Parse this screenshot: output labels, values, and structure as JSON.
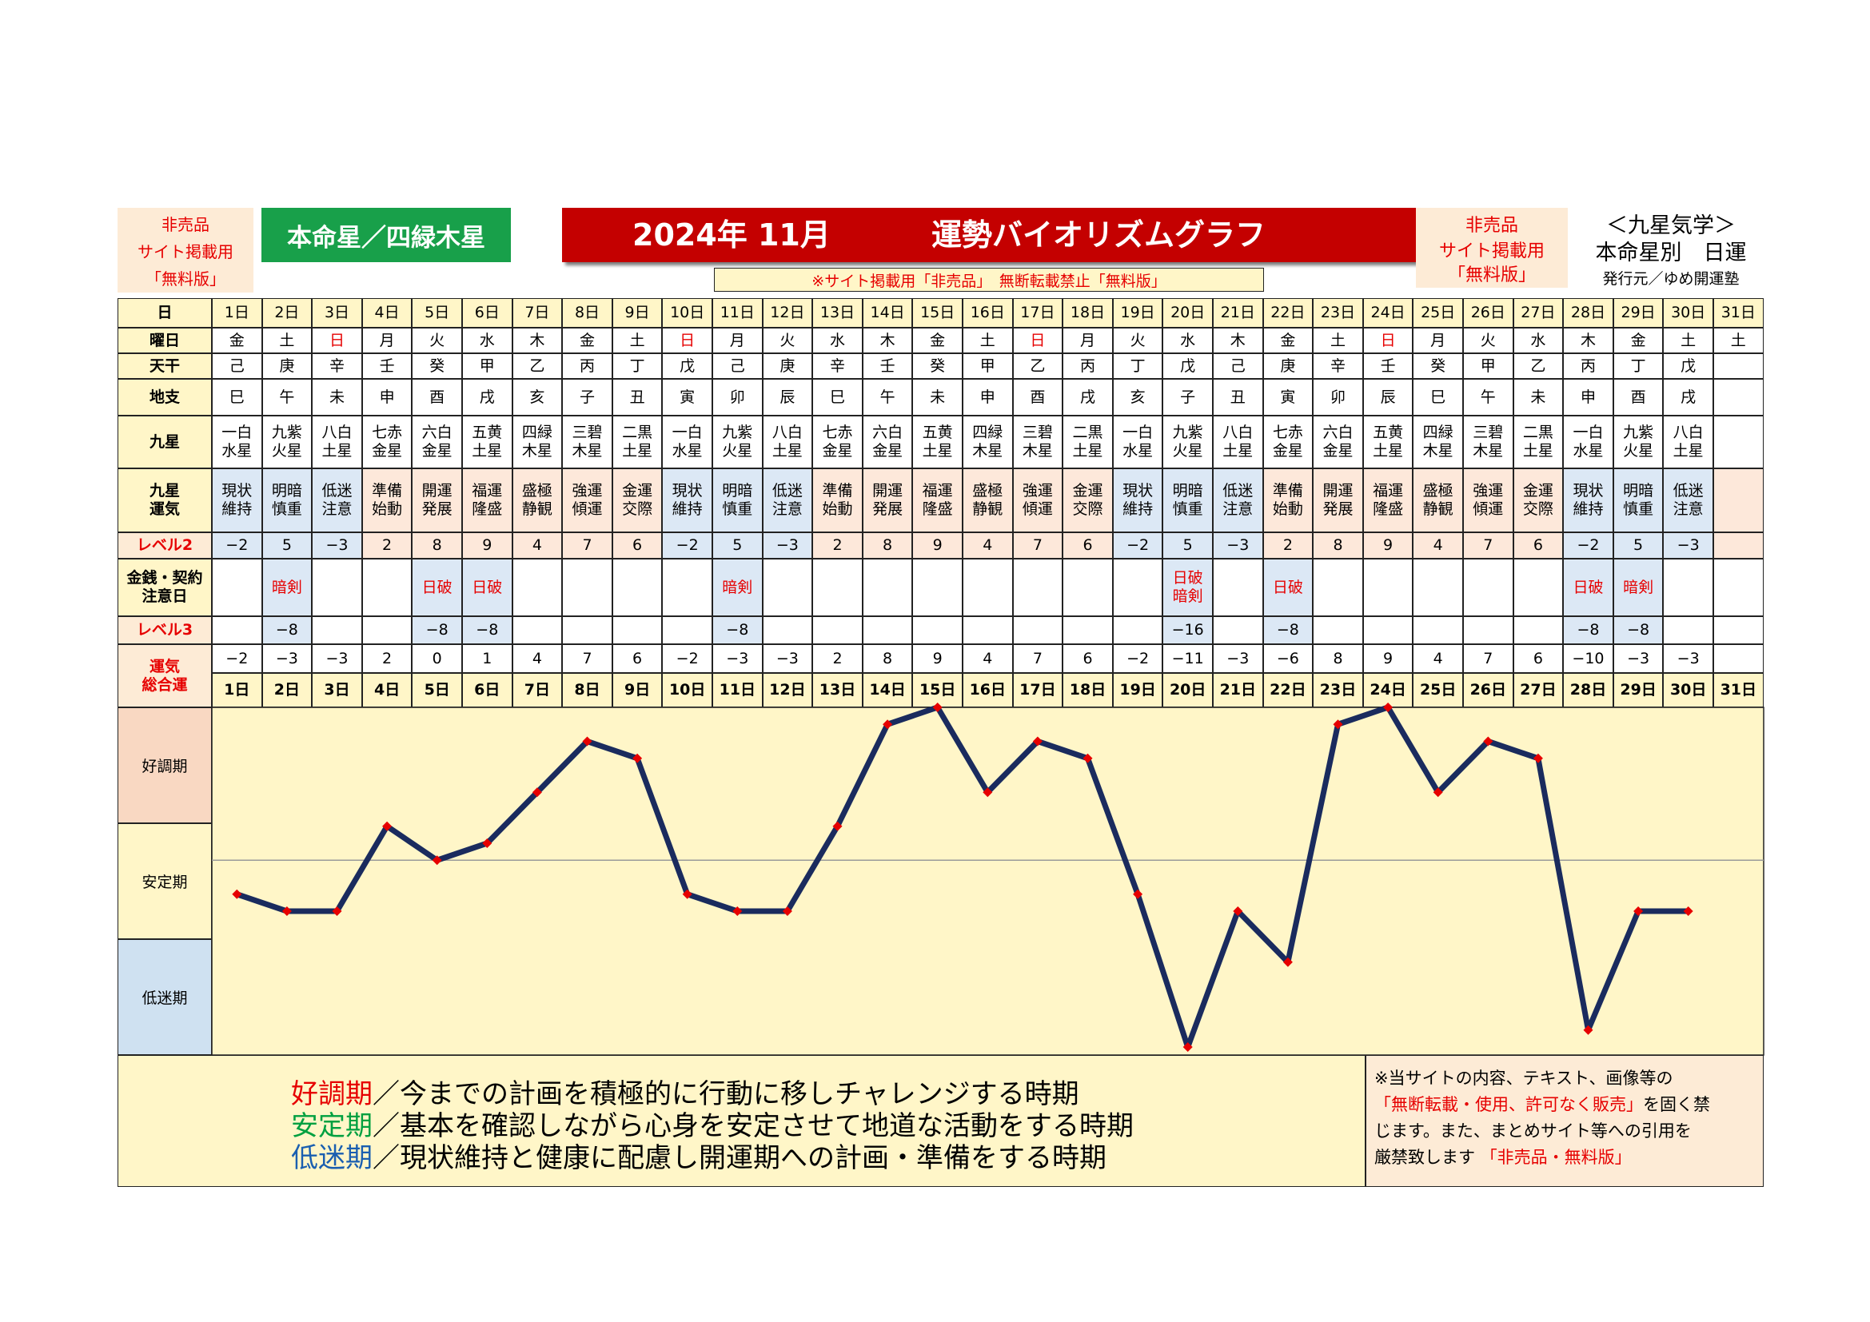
{
  "header": {
    "left_notice": [
      "非売品",
      "サイト掲載用",
      "「無料版」"
    ],
    "honmei_label": "本命星／四緑木星",
    "title_year_month": "2024年 11月",
    "title_main": "運勢バイオリズムグラフ",
    "right_notice": [
      "非売品",
      "サイト掲載用",
      "「無料版」"
    ],
    "school": "＜九星気学＞",
    "school_sub": "本命星別　日運",
    "publisher": "発行元／ゆめ開運塾",
    "banner": "※サイト掲載用「非売品」　無断転載禁止「無料版」"
  },
  "table": {
    "row_labels": {
      "day": "日",
      "weekday": "曜日",
      "tenkan": "天干",
      "chishi": "地支",
      "kyusei": "九星",
      "unki": "九星\n運気",
      "level2": "レベル2",
      "caution": "金銭・契約\n注意日",
      "level3": "レベル3",
      "total": "運気\n総合運"
    },
    "days": [
      "1日",
      "2日",
      "3日",
      "4日",
      "5日",
      "6日",
      "7日",
      "8日",
      "9日",
      "10日",
      "11日",
      "12日",
      "13日",
      "14日",
      "15日",
      "16日",
      "17日",
      "18日",
      "19日",
      "20日",
      "21日",
      "22日",
      "23日",
      "24日",
      "25日",
      "26日",
      "27日",
      "28日",
      "29日",
      "30日",
      "31日"
    ],
    "weekdays": [
      "金",
      "土",
      "日",
      "月",
      "火",
      "水",
      "木",
      "金",
      "土",
      "日",
      "月",
      "火",
      "水",
      "木",
      "金",
      "土",
      "日",
      "月",
      "火",
      "水",
      "木",
      "金",
      "土",
      "日",
      "月",
      "火",
      "水",
      "木",
      "金",
      "土",
      "土"
    ],
    "tenkan": [
      "己",
      "庚",
      "辛",
      "壬",
      "癸",
      "甲",
      "乙",
      "丙",
      "丁",
      "戊",
      "己",
      "庚",
      "辛",
      "壬",
      "癸",
      "甲",
      "乙",
      "丙",
      "丁",
      "戊",
      "己",
      "庚",
      "辛",
      "壬",
      "癸",
      "甲",
      "乙",
      "丙",
      "丁",
      "戊",
      ""
    ],
    "chishi": [
      "巳",
      "午",
      "未",
      "申",
      "酉",
      "戌",
      "亥",
      "子",
      "丑",
      "寅",
      "卯",
      "辰",
      "巳",
      "午",
      "未",
      "申",
      "酉",
      "戌",
      "亥",
      "子",
      "丑",
      "寅",
      "卯",
      "辰",
      "巳",
      "午",
      "未",
      "申",
      "酉",
      "戌",
      ""
    ],
    "kyusei": [
      "一白\n水星",
      "九紫\n火星",
      "八白\n土星",
      "七赤\n金星",
      "六白\n金星",
      "五黄\n土星",
      "四緑\n木星",
      "三碧\n木星",
      "二黒\n土星",
      "一白\n水星",
      "九紫\n火星",
      "八白\n土星",
      "七赤\n金星",
      "六白\n金星",
      "五黄\n土星",
      "四緑\n木星",
      "三碧\n木星",
      "二黒\n土星",
      "一白\n水星",
      "九紫\n火星",
      "八白\n土星",
      "七赤\n金星",
      "六白\n金星",
      "五黄\n土星",
      "四緑\n木星",
      "三碧\n木星",
      "二黒\n土星",
      "一白\n水星",
      "九紫\n火星",
      "八白\n土星",
      ""
    ],
    "unki": [
      "現状\n維持",
      "明暗\n慎重",
      "低迷\n注意",
      "準備\n始動",
      "開運\n発展",
      "福運\n隆盛",
      "盛極\n静観",
      "強運\n傾運",
      "金運\n交際",
      "現状\n維持",
      "明暗\n慎重",
      "低迷\n注意",
      "準備\n始動",
      "開運\n発展",
      "福運\n隆盛",
      "盛極\n静観",
      "強運\n傾運",
      "金運\n交際",
      "現状\n維持",
      "明暗\n慎重",
      "低迷\n注意",
      "準備\n始動",
      "開運\n発展",
      "福運\n隆盛",
      "盛極\n静観",
      "強運\n傾運",
      "金運\n交際",
      "現状\n維持",
      "明暗\n慎重",
      "低迷\n注意",
      ""
    ],
    "level2": [
      "−2",
      "5",
      "−3",
      "2",
      "8",
      "9",
      "4",
      "7",
      "6",
      "−2",
      "5",
      "−3",
      "2",
      "8",
      "9",
      "4",
      "7",
      "6",
      "−2",
      "5",
      "−3",
      "2",
      "8",
      "9",
      "4",
      "7",
      "6",
      "−2",
      "5",
      "−3",
      ""
    ],
    "caution": [
      "",
      "暗剣",
      "",
      "",
      "日破",
      "日破",
      "",
      "",
      "",
      "",
      "暗剣",
      "",
      "",
      "",
      "",
      "",
      "",
      "",
      "",
      "日破\n暗剣",
      "",
      "日破",
      "",
      "",
      "",
      "",
      "",
      "日破",
      "暗剣",
      "",
      ""
    ],
    "level3": [
      "",
      "−8",
      "",
      "",
      "−8",
      "−8",
      "",
      "",
      "",
      "",
      "−8",
      "",
      "",
      "",
      "",
      "",
      "",
      "",
      "",
      "−16",
      "",
      "−8",
      "",
      "",
      "",
      "",
      "",
      "−8",
      "−8",
      "",
      ""
    ],
    "total": [
      "−2",
      "−3",
      "−3",
      "2",
      "0",
      "1",
      "4",
      "7",
      "6",
      "−2",
      "−3",
      "−3",
      "2",
      "8",
      "9",
      "4",
      "7",
      "6",
      "−2",
      "−11",
      "−3",
      "−6",
      "8",
      "9",
      "4",
      "7",
      "6",
      "−10",
      "−3",
      "−3",
      ""
    ]
  },
  "chart_data": {
    "type": "line",
    "x": [
      "1日",
      "2日",
      "3日",
      "4日",
      "5日",
      "6日",
      "7日",
      "8日",
      "9日",
      "10日",
      "11日",
      "12日",
      "13日",
      "14日",
      "15日",
      "16日",
      "17日",
      "18日",
      "19日",
      "20日",
      "21日",
      "22日",
      "23日",
      "24日",
      "25日",
      "26日",
      "27日",
      "28日",
      "29日",
      "30日",
      "31日"
    ],
    "series": [
      {
        "values": [
          -2,
          -3,
          -3,
          2,
          0,
          1,
          4,
          7,
          6,
          -2,
          -3,
          -3,
          2,
          8,
          9,
          4,
          7,
          6,
          -2,
          -11,
          -3,
          -6,
          8,
          9,
          4,
          7,
          6,
          -10,
          -3,
          -3,
          null
        ]
      }
    ],
    "ylim": [
      -11,
      9
    ],
    "bands": [
      "好調期",
      "安定期",
      "低迷期"
    ],
    "line_color": "#1a2b5e",
    "marker_color": "#e60000",
    "reference_line": 0
  },
  "legend": {
    "good_term": "好調期",
    "good_text": "／今までの計画を積極的に行動に移しチャレンジする時期",
    "stable_term": "安定期",
    "stable_text": "／基本を確認しながら心身を安定させて地道な活動をする時期",
    "low_term": "低迷期",
    "low_text": "／現状維持と健康に配慮し開運期への計画・準備をする時期",
    "good_color": "#e60000",
    "stable_color": "#00a040",
    "low_color": "#1a5fb0"
  },
  "notice": {
    "line1": "※当サイトの内容、テキスト、画像等の",
    "line2_red": "「無断転載・使用、許可なく販売」",
    "line2_rest": "を固く禁",
    "line3": "じます。また、まとめサイト等への引用を",
    "line4": "厳禁致します",
    "line4_red": "「非売品・無料版」"
  }
}
